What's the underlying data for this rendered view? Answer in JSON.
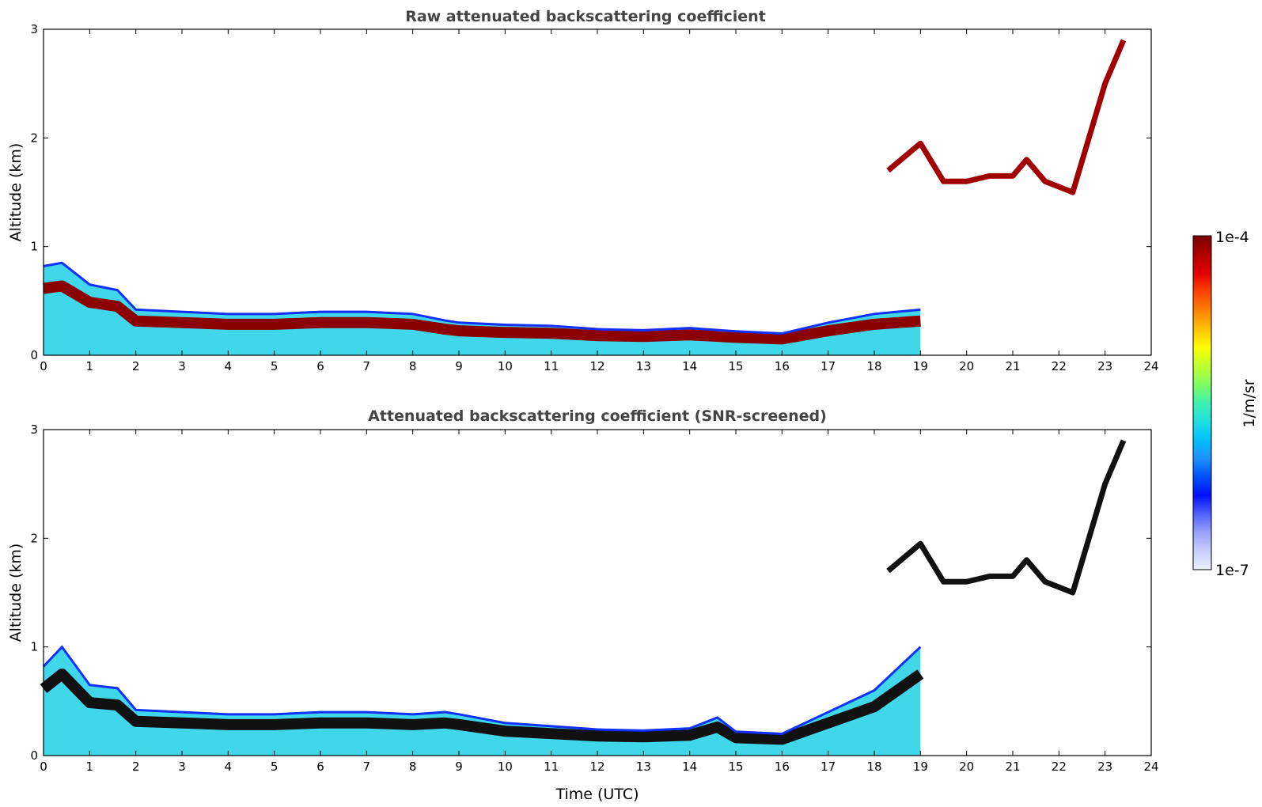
{
  "chart_data": [
    {
      "type": "heatmap",
      "title": "Raw attenuated backscattering coefficient",
      "xlabel": "",
      "ylabel": "Altitude (km)",
      "xlim": [
        0,
        24
      ],
      "ylim": [
        0,
        3
      ],
      "x_ticks": [
        "0",
        "1",
        "2",
        "3",
        "4",
        "5",
        "6",
        "7",
        "8",
        "9",
        "10",
        "11",
        "12",
        "13",
        "14",
        "15",
        "16",
        "17",
        "18",
        "19",
        "20",
        "21",
        "22",
        "23",
        "24"
      ],
      "y_ticks": [
        "0",
        "1",
        "2",
        "3"
      ],
      "layer_top_km": [
        [
          0,
          0.82
        ],
        [
          0.4,
          0.85
        ],
        [
          1,
          0.65
        ],
        [
          1.6,
          0.6
        ],
        [
          2,
          0.42
        ],
        [
          3,
          0.4
        ],
        [
          4,
          0.38
        ],
        [
          5,
          0.38
        ],
        [
          6,
          0.4
        ],
        [
          7,
          0.4
        ],
        [
          8,
          0.38
        ],
        [
          8.7,
          0.32
        ],
        [
          9,
          0.3
        ],
        [
          10,
          0.28
        ],
        [
          11,
          0.27
        ],
        [
          12,
          0.24
        ],
        [
          13,
          0.23
        ],
        [
          14,
          0.25
        ],
        [
          15,
          0.22
        ],
        [
          16,
          0.2
        ],
        [
          17,
          0.3
        ],
        [
          18,
          0.38
        ],
        [
          19,
          0.42
        ]
      ],
      "cloud_layer_km": [
        [
          18.3,
          1.7
        ],
        [
          19,
          1.95
        ],
        [
          19.5,
          1.6
        ],
        [
          20,
          1.6
        ],
        [
          20.5,
          1.65
        ],
        [
          21,
          1.65
        ],
        [
          21.3,
          1.8
        ],
        [
          21.7,
          1.6
        ],
        [
          22.3,
          1.5
        ],
        [
          23,
          2.5
        ],
        [
          23.4,
          2.9
        ]
      ]
    },
    {
      "type": "heatmap",
      "title": "Attenuated backscattering coefficient (SNR-screened)",
      "xlabel": "Time (UTC)",
      "ylabel": "Altitude (km)",
      "xlim": [
        0,
        24
      ],
      "ylim": [
        0,
        3
      ],
      "x_ticks": [
        "0",
        "1",
        "2",
        "3",
        "4",
        "5",
        "6",
        "7",
        "8",
        "9",
        "10",
        "11",
        "12",
        "13",
        "14",
        "15",
        "16",
        "17",
        "18",
        "19",
        "20",
        "21",
        "22",
        "23",
        "24"
      ],
      "y_ticks": [
        "0",
        "1",
        "2",
        "3"
      ],
      "layer_top_km": [
        [
          0,
          0.82
        ],
        [
          0.4,
          1.0
        ],
        [
          1,
          0.65
        ],
        [
          1.6,
          0.62
        ],
        [
          2,
          0.42
        ],
        [
          3,
          0.4
        ],
        [
          4,
          0.38
        ],
        [
          5,
          0.38
        ],
        [
          6,
          0.4
        ],
        [
          7,
          0.4
        ],
        [
          8,
          0.38
        ],
        [
          8.7,
          0.4
        ],
        [
          9,
          0.38
        ],
        [
          10,
          0.3
        ],
        [
          11,
          0.27
        ],
        [
          12,
          0.24
        ],
        [
          13,
          0.23
        ],
        [
          14,
          0.25
        ],
        [
          14.6,
          0.35
        ],
        [
          15,
          0.22
        ],
        [
          16,
          0.2
        ],
        [
          17,
          0.4
        ],
        [
          18,
          0.6
        ],
        [
          19,
          1.0
        ]
      ],
      "cloud_layer_km": [
        [
          18.3,
          1.7
        ],
        [
          19,
          1.95
        ],
        [
          19.5,
          1.6
        ],
        [
          20,
          1.6
        ],
        [
          20.5,
          1.65
        ],
        [
          21,
          1.65
        ],
        [
          21.3,
          1.8
        ],
        [
          21.7,
          1.6
        ],
        [
          22.3,
          1.5
        ],
        [
          23,
          2.5
        ],
        [
          23.4,
          2.9
        ]
      ]
    }
  ],
  "colorbar": {
    "max_label": "1e-4",
    "min_label": "1e-7",
    "unit_label": "1/m/sr",
    "colors": [
      "#eef0ff",
      "#c8ccff",
      "#9aa2ff",
      "#5060ff",
      "#0010ff",
      "#0050ff",
      "#1e90ff",
      "#00c0ff",
      "#20e0e0",
      "#40f0b0",
      "#80ff60",
      "#c0ff30",
      "#ffff00",
      "#ffc000",
      "#ff8000",
      "#ff4000",
      "#e00000",
      "#b00000",
      "#7a0000"
    ]
  }
}
